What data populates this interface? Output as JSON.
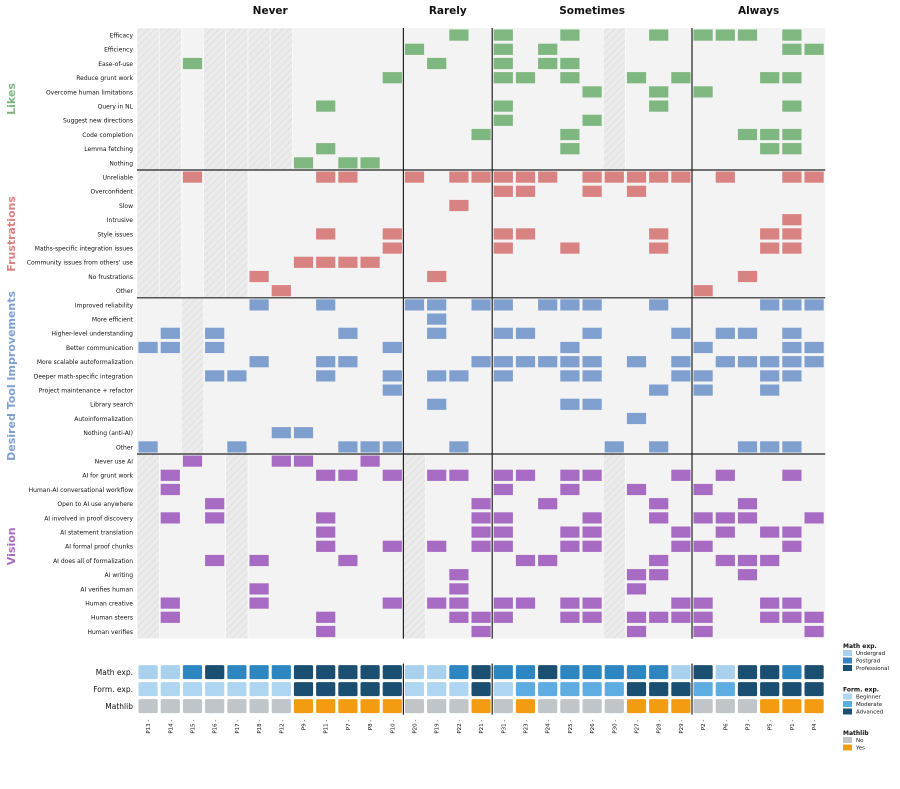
{
  "chart_data": {
    "type": "heatmap",
    "columns": [
      "P13",
      "P14",
      "P15",
      "P16",
      "P17",
      "P18",
      "P12",
      "P9",
      "P11",
      "P7",
      "P8",
      "P10",
      "P20",
      "P19",
      "P22",
      "P21",
      "P31",
      "P23",
      "P24",
      "P25",
      "P26",
      "P30",
      "P27",
      "P28",
      "P29",
      "P2",
      "P6",
      "P3",
      "P5",
      "P1",
      "P4"
    ],
    "frequency_groups": [
      {
        "label": "Never",
        "count": 12
      },
      {
        "label": "Rarely",
        "count": 4
      },
      {
        "label": "Sometimes",
        "count": 9
      },
      {
        "label": "Always",
        "count": 6
      }
    ],
    "categories": [
      {
        "name": "Likes",
        "color": "#7eb77f",
        "rows": [
          "Efficacy",
          "Efficiency",
          "Ease-of-use",
          "Reduce grunt work",
          "Overcome human limitations",
          "Query in NL",
          "Suggest new directions",
          "Code completion",
          "Lemma fetching",
          "Nothing"
        ],
        "na_columns": [
          "P13",
          "P14",
          "P16",
          "P17",
          "P18",
          "P12",
          "P30"
        ]
      },
      {
        "name": "Frustrations",
        "color": "#d98282",
        "rows": [
          "Unreliable",
          "Overconfident",
          "Slow",
          "Intrusive",
          "Style issues",
          "Maths-specific integration issues",
          "Community issues from others' use",
          "No frustrations",
          "Other"
        ],
        "na_columns": [
          "P13",
          "P14",
          "P16",
          "P17"
        ]
      },
      {
        "name": "Desired Tool Improvements",
        "color": "#7f9fcf",
        "rows": [
          "Improved reliability",
          "More efficient",
          "Higher-level understanding",
          "Better communication",
          "More scalable autoformalization",
          "Deeper math-specific integration",
          "Project maintenance + refactor",
          "Library search",
          "Autoinformalization",
          "Nothing (anti-AI)",
          "Other"
        ],
        "na_columns": [
          "P15"
        ]
      },
      {
        "name": "Vision",
        "color": "#a76bc3",
        "rows": [
          "Never use AI",
          "AI for grunt work",
          "Human-AI conversational workflow",
          "Open to AI use anywhere",
          "AI involved in proof discovery",
          "AI statement translation",
          "AI formal proof chunks",
          "AI does all of formalization",
          "AI writing",
          "AI verifies human",
          "Human creative",
          "Human steers",
          "Human verifies"
        ],
        "na_columns": [
          "P13",
          "P17",
          "P20",
          "P30"
        ]
      }
    ],
    "cells": {
      "Likes": [
        [
          "P22",
          "P31",
          "P25",
          "P28",
          "P2",
          "P6",
          "P3",
          "P1"
        ],
        [
          "P20",
          "P31",
          "P24",
          "P1",
          "P4"
        ],
        [
          "P15",
          "P19",
          "P31",
          "P24",
          "P25"
        ],
        [
          "P10",
          "P31",
          "P23",
          "P25",
          "P27",
          "P29",
          "P5",
          "P1"
        ],
        [
          "P26",
          "P28",
          "P2"
        ],
        [
          "P11",
          "P31",
          "P28",
          "P1"
        ],
        [
          "P31",
          "P26"
        ],
        [
          "P21",
          "P25",
          "P3",
          "P5",
          "P1"
        ],
        [
          "P11",
          "P25",
          "P5",
          "P1"
        ],
        [
          "P9",
          "P7",
          "P8"
        ]
      ],
      "Frustrations": [
        [
          "P15",
          "P11",
          "P7",
          "P20",
          "P22",
          "P21",
          "P31",
          "P23",
          "P24",
          "P26",
          "P30",
          "P27",
          "P28",
          "P29",
          "P6",
          "P1",
          "P4"
        ],
        [
          "P31",
          "P23",
          "P26",
          "P27"
        ],
        [
          "P22"
        ],
        [
          "P1"
        ],
        [
          "P11",
          "P10",
          "P31",
          "P23",
          "P28",
          "P5",
          "P1"
        ],
        [
          "P10",
          "P31",
          "P25",
          "P28",
          "P5",
          "P1"
        ],
        [
          "P9",
          "P11",
          "P7",
          "P8"
        ],
        [
          "P18",
          "P19",
          "P3"
        ],
        [
          "P12",
          "P2"
        ]
      ],
      "Desired Tool Improvements": [
        [
          "P18",
          "P11",
          "P20",
          "P19",
          "P21",
          "P31",
          "P24",
          "P25",
          "P26",
          "P28",
          "P5",
          "P1",
          "P4"
        ],
        [
          "P19"
        ],
        [
          "P14",
          "P16",
          "P7",
          "P19",
          "P31",
          "P23",
          "P26",
          "P29",
          "P6",
          "P3",
          "P1"
        ],
        [
          "P13",
          "P14",
          "P16",
          "P10",
          "P25",
          "P2",
          "P1",
          "P4"
        ],
        [
          "P18",
          "P11",
          "P7",
          "P21",
          "P31",
          "P23",
          "P24",
          "P25",
          "P26",
          "P27",
          "P29",
          "P6",
          "P3",
          "P5",
          "P1",
          "P4"
        ],
        [
          "P16",
          "P17",
          "P11",
          "P10",
          "P19",
          "P22",
          "P31",
          "P25",
          "P26",
          "P29",
          "P2",
          "P5",
          "P1"
        ],
        [
          "P10",
          "P28",
          "P2",
          "P5"
        ],
        [
          "P19",
          "P25",
          "P26"
        ],
        [
          "P27"
        ],
        [
          "P12",
          "P9"
        ],
        [
          "P13",
          "P17",
          "P7",
          "P8",
          "P10",
          "P22",
          "P30",
          "P28",
          "P3",
          "P5",
          "P1"
        ]
      ],
      "Vision": [
        [
          "P15",
          "P12",
          "P9",
          "P8"
        ],
        [
          "P14",
          "P11",
          "P7",
          "P10",
          "P19",
          "P22",
          "P31",
          "P23",
          "P25",
          "P26",
          "P29",
          "P6",
          "P1"
        ],
        [
          "P14",
          "P31",
          "P25",
          "P27",
          "P2"
        ],
        [
          "P16",
          "P21",
          "P24",
          "P28",
          "P3"
        ],
        [
          "P14",
          "P16",
          "P11",
          "P21",
          "P31",
          "P26",
          "P28",
          "P2",
          "P6",
          "P3",
          "P4"
        ],
        [
          "P11",
          "P21",
          "P31",
          "P25",
          "P26",
          "P29",
          "P6",
          "P5",
          "P1"
        ],
        [
          "P11",
          "P10",
          "P19",
          "P21",
          "P31",
          "P25",
          "P26",
          "P29",
          "P2",
          "P1"
        ],
        [
          "P16",
          "P18",
          "P7",
          "P23",
          "P24",
          "P28",
          "P6",
          "P3",
          "P5"
        ],
        [
          "P22",
          "P27",
          "P28",
          "P3"
        ],
        [
          "P18",
          "P22",
          "P27"
        ],
        [
          "P14",
          "P18",
          "P10",
          "P19",
          "P22",
          "P31",
          "P23",
          "P25",
          "P26",
          "P29",
          "P2",
          "P5",
          "P1"
        ],
        [
          "P14",
          "P11",
          "P22",
          "P21",
          "P31",
          "P25",
          "P26",
          "P27",
          "P28",
          "P29",
          "P2",
          "P5",
          "P1",
          "P4"
        ],
        [
          "P11",
          "P21",
          "P27",
          "P2",
          "P4"
        ]
      ]
    },
    "attributes": [
      {
        "label": "Math exp.",
        "values": [
          "Undergrad",
          "Undergrad",
          "Postgrad",
          "Professional",
          "Postgrad",
          "Postgrad",
          "Postgrad",
          "Professional",
          "Professional",
          "Professional",
          "Professional",
          "Professional",
          "Undergrad",
          "Undergrad",
          "Postgrad",
          "Professional",
          "Postgrad",
          "Postgrad",
          "Professional",
          "Postgrad",
          "Postgrad",
          "Postgrad",
          "Postgrad",
          "Postgrad",
          "Undergrad",
          "Professional",
          "Undergrad",
          "Professional",
          "Professional",
          "Postgrad",
          "Professional"
        ]
      },
      {
        "label": "Form. exp.",
        "values": [
          "Beginner",
          "Beginner",
          "Beginner",
          "Beginner",
          "Beginner",
          "Beginner",
          "Beginner",
          "Advanced",
          "Advanced",
          "Advanced",
          "Advanced",
          "Advanced",
          "Beginner",
          "Beginner",
          "Beginner",
          "Advanced",
          "Beginner",
          "Moderate",
          "Moderate",
          "Moderate",
          "Moderate",
          "Moderate",
          "Advanced",
          "Advanced",
          "Advanced",
          "Moderate",
          "Moderate",
          "Advanced",
          "Advanced",
          "Advanced",
          "Advanced"
        ]
      },
      {
        "label": "Mathlib",
        "values": [
          "No",
          "No",
          "No",
          "No",
          "No",
          "No",
          "No",
          "Yes",
          "Yes",
          "Yes",
          "Yes",
          "Yes",
          "No",
          "No",
          "No",
          "Yes",
          "No",
          "Yes",
          "No",
          "No",
          "No",
          "No",
          "Yes",
          "Yes",
          "Yes",
          "No",
          "No",
          "No",
          "Yes",
          "Yes",
          "Yes"
        ]
      }
    ],
    "legend": [
      {
        "title": "Math exp.",
        "items": [
          {
            "label": "Undergrad",
            "color": "#a9d0ec"
          },
          {
            "label": "Postgrad",
            "color": "#2e86c1"
          },
          {
            "label": "Professional",
            "color": "#1b4f72"
          }
        ]
      },
      {
        "title": "Form. exp.",
        "items": [
          {
            "label": "Beginner",
            "color": "#aed6f1"
          },
          {
            "label": "Moderate",
            "color": "#5dade2"
          },
          {
            "label": "Advanced",
            "color": "#1b4f72"
          }
        ]
      },
      {
        "title": "Mathlib",
        "items": [
          {
            "label": "No",
            "color": "#bfc5c9"
          },
          {
            "label": "Yes",
            "color": "#f39c12"
          }
        ]
      }
    ],
    "colors": {
      "background": "#f3f3f3",
      "na_fill": "#ebebeb",
      "na_hatch": "#d9d9d9",
      "divider": "#222222"
    }
  }
}
